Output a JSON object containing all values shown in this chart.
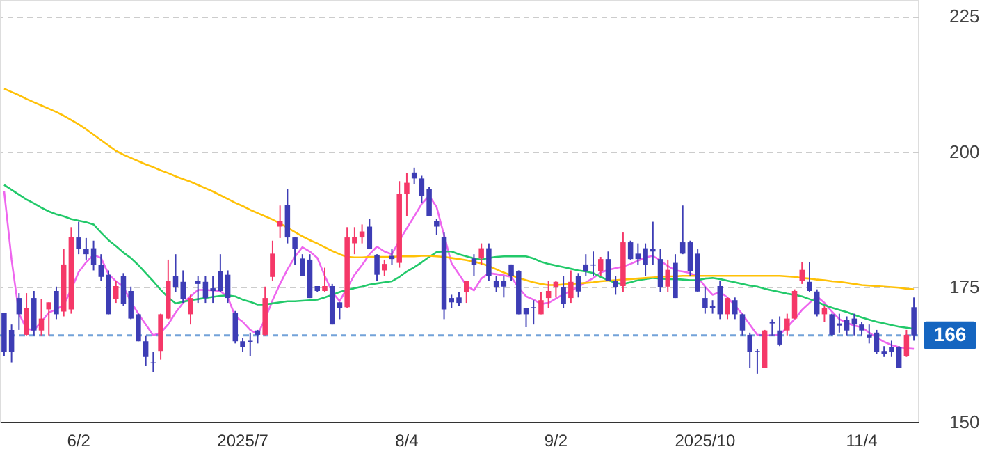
{
  "chart_data": {
    "type": "candlestick",
    "categories": [
      null,
      null,
      null,
      null,
      null,
      null,
      null,
      null,
      null,
      null,
      "6/2",
      null,
      null,
      null,
      null,
      null,
      null,
      null,
      null,
      null,
      null,
      null,
      null,
      null,
      null,
      null,
      null,
      null,
      null,
      null,
      null,
      null,
      "2025/7",
      null,
      null,
      null,
      null,
      null,
      null,
      null,
      null,
      null,
      null,
      null,
      null,
      null,
      null,
      null,
      null,
      null,
      null,
      null,
      null,
      null,
      "8/4",
      null,
      null,
      null,
      null,
      null,
      null,
      null,
      null,
      null,
      null,
      null,
      null,
      null,
      null,
      null,
      null,
      null,
      null,
      null,
      "9/2",
      null,
      null,
      null,
      null,
      null,
      null,
      null,
      null,
      null,
      null,
      null,
      null,
      null,
      null,
      null,
      null,
      null,
      null,
      null,
      "2025/10",
      null,
      null,
      null,
      null,
      null,
      null,
      null,
      null,
      null,
      null,
      null,
      null,
      null,
      null,
      null,
      null,
      null,
      null,
      null,
      null,
      "11/4",
      null,
      null,
      null,
      null,
      null,
      null,
      null
    ],
    "ohlc": [
      [
        170.1,
        170.1,
        162.2,
        162.9
      ],
      [
        167,
        168,
        161,
        163
      ],
      [
        172.9,
        173.8,
        167,
        169.9
      ],
      [
        166.1,
        173.8,
        166,
        171
      ],
      [
        172.9,
        174.2,
        166,
        166.9
      ],
      [
        166.9,
        172.7,
        166,
        169.1
      ],
      [
        170.8,
        172.1,
        166,
        172.1
      ],
      [
        174.2,
        175,
        169,
        169.9
      ],
      [
        170.4,
        182,
        169.5,
        179.1
      ],
      [
        170.8,
        186,
        170,
        184.1
      ],
      [
        184.1,
        187,
        181,
        182
      ],
      [
        182,
        184,
        180,
        181
      ],
      [
        182.1,
        183.5,
        178,
        179
      ],
      [
        179,
        181,
        176,
        176.8
      ],
      [
        177.2,
        178,
        169.9,
        169.9
      ],
      [
        172.7,
        176,
        172,
        175.1
      ],
      [
        177,
        177.5,
        171.5,
        171.8
      ],
      [
        174.2,
        175,
        169,
        169.1
      ],
      [
        169.9,
        170,
        164.9,
        164.9
      ],
      [
        164.9,
        166,
        160.3,
        162
      ],
      [
        161,
        163,
        159.2,
        160.9
      ],
      [
        163.1,
        170,
        161.5,
        169.9
      ],
      [
        169.1,
        180,
        169,
        176.1
      ],
      [
        177,
        181,
        174,
        174.9
      ],
      [
        175.9,
        178,
        172,
        172.7
      ],
      [
        169.9,
        173.5,
        168,
        172.9
      ],
      [
        176.1,
        177,
        172,
        175.5
      ],
      [
        175.9,
        177,
        172,
        172.9
      ],
      [
        174.7,
        177,
        172,
        174.2
      ],
      [
        177.8,
        181,
        174,
        174.2
      ],
      [
        177.2,
        178,
        172,
        172.9
      ],
      [
        170.1,
        170.5,
        164.5,
        164.9
      ],
      [
        164.9,
        165.5,
        163,
        163.9
      ],
      [
        165,
        166.5,
        162.2,
        164.7
      ],
      [
        166.9,
        167,
        164.5,
        166.1
      ],
      [
        166.1,
        175,
        166,
        172.9
      ],
      [
        176.8,
        183.5,
        176,
        181.1
      ],
      [
        186.1,
        190,
        184,
        187.1
      ],
      [
        190.1,
        193,
        183,
        184.1
      ],
      [
        184.1,
        184.1,
        179,
        182
      ],
      [
        180.2,
        181,
        177,
        177
      ],
      [
        180,
        181,
        172.9,
        172.9
      ],
      [
        175.1,
        175.1,
        174,
        174.2
      ],
      [
        174.2,
        178.5,
        174,
        175.1
      ],
      [
        175.1,
        175.5,
        168,
        168
      ],
      [
        172.1,
        172.1,
        169,
        171
      ],
      [
        171.2,
        186,
        171,
        184.1
      ],
      [
        183,
        186,
        181,
        184.1
      ],
      [
        184.1,
        186.5,
        183,
        185.2
      ],
      [
        186.1,
        187.5,
        182,
        182
      ],
      [
        180.9,
        181,
        176,
        177.2
      ],
      [
        178,
        180,
        177,
        179.2
      ],
      [
        180.7,
        182,
        179,
        180.1
      ],
      [
        179.4,
        194.5,
        178.5,
        192.1
      ],
      [
        192.1,
        196,
        188,
        194.2
      ],
      [
        196.1,
        197,
        194,
        195
      ],
      [
        195,
        195.5,
        190.5,
        191.8
      ],
      [
        193.1,
        193.5,
        188,
        188
      ],
      [
        187.1,
        187.5,
        184.5,
        186.1
      ],
      [
        184.1,
        185,
        169,
        170.8
      ],
      [
        172.9,
        173.5,
        171,
        172.1
      ],
      [
        173,
        174,
        171.5,
        172
      ],
      [
        174,
        176.1,
        172,
        176.1
      ],
      [
        180.2,
        181,
        177,
        179
      ],
      [
        180.2,
        183,
        179,
        182.1
      ],
      [
        182.1,
        183,
        176,
        177
      ],
      [
        176.1,
        177,
        174,
        174.9
      ],
      [
        176.1,
        177,
        173,
        175
      ],
      [
        179.1,
        179.1,
        176,
        177
      ],
      [
        177.8,
        178,
        169.9,
        169.9
      ],
      [
        171,
        171,
        167.5,
        169.9
      ],
      [
        171.2,
        172.5,
        168,
        171
      ],
      [
        169.9,
        174,
        169.9,
        172.5
      ],
      [
        172.9,
        176,
        171,
        174.2
      ],
      [
        174.9,
        176,
        173,
        175.9
      ],
      [
        174.9,
        177,
        171,
        171.8
      ],
      [
        172.9,
        178,
        172,
        175.9
      ],
      [
        177,
        177.5,
        173,
        174.1
      ],
      [
        179.1,
        181,
        177,
        177.8
      ],
      [
        179.1,
        181.5,
        177,
        178.9
      ],
      [
        177.8,
        180.5,
        177,
        180.1
      ],
      [
        180.1,
        181.5,
        176,
        176.1
      ],
      [
        176.1,
        177,
        173.5,
        174.9
      ],
      [
        175.1,
        185,
        174,
        183.2
      ],
      [
        183.2,
        183.5,
        180,
        180.1
      ],
      [
        181.1,
        183,
        179,
        180.1
      ],
      [
        182.1,
        183,
        177,
        179
      ],
      [
        182,
        187,
        179,
        181.5
      ],
      [
        180.1,
        182,
        174,
        174.9
      ],
      [
        175,
        180,
        174,
        178.1
      ],
      [
        179.4,
        181,
        172.9,
        172.9
      ],
      [
        183.2,
        190,
        181,
        181.1
      ],
      [
        183.2,
        183.5,
        177,
        177.8
      ],
      [
        181.1,
        182,
        174,
        174.1
      ],
      [
        172.9,
        175,
        170,
        171
      ],
      [
        171.5,
        172.5,
        170,
        171
      ],
      [
        175.1,
        176,
        169,
        169.9
      ],
      [
        169.9,
        173,
        169,
        172.9
      ],
      [
        172.5,
        173,
        169,
        169.9
      ],
      [
        169.9,
        170,
        166,
        166.9
      ],
      [
        166.1,
        166.5,
        160,
        162.9
      ],
      [
        163.1,
        163.5,
        158.9,
        162.9
      ],
      [
        160,
        167,
        160,
        166.9
      ],
      [
        168.4,
        169,
        166,
        168.2
      ],
      [
        166.9,
        169.5,
        164,
        164.3
      ],
      [
        166.9,
        170,
        166,
        169.1
      ],
      [
        169.1,
        174.5,
        169,
        174.2
      ],
      [
        176.1,
        179.5,
        175.5,
        178.1
      ],
      [
        175.9,
        179.5,
        174,
        174.2
      ],
      [
        174.1,
        174.5,
        169.5,
        169.9
      ],
      [
        169.9,
        171.5,
        168.5,
        171
      ],
      [
        169.9,
        170,
        166,
        166.1
      ],
      [
        168.2,
        170,
        166.5,
        167.8
      ],
      [
        168.9,
        169.5,
        166,
        166.9
      ],
      [
        169.1,
        170,
        166,
        168
      ],
      [
        168,
        168.5,
        166,
        166.9
      ],
      [
        166.1,
        168,
        164.5,
        165.6
      ],
      [
        166.5,
        167,
        162.5,
        162.9
      ],
      [
        163.1,
        164,
        162,
        162.6
      ],
      [
        163.9,
        165,
        162,
        162.9
      ],
      [
        163.9,
        164,
        160,
        160
      ],
      [
        162.2,
        167,
        162,
        166.1
      ],
      [
        171.2,
        173,
        165,
        166
      ]
    ],
    "colors": [
      "#3d3db5",
      "#3d3db5",
      "#3d3db5",
      "#f53868",
      "#3d3db5",
      "#f53868",
      "#f53868",
      "#3d3db5",
      "#f53868",
      "#f53868",
      "#3d3db5",
      "#3d3db5",
      "#3d3db5",
      "#3d3db5",
      "#3d3db5",
      "#f53868",
      "#3d3db5",
      "#3d3db5",
      "#3d3db5",
      "#3d3db5",
      "#3d3db5",
      "#f53868",
      "#f53868",
      "#3d3db5",
      "#3d3db5",
      "#f53868",
      "#3d3db5",
      "#3d3db5",
      "#3d3db5",
      "#3d3db5",
      "#3d3db5",
      "#3d3db5",
      "#3d3db5",
      "#3d3db5",
      "#3d3db5",
      "#f53868",
      "#f53868",
      "#f53868",
      "#3d3db5",
      "#3d3db5",
      "#3d3db5",
      "#3d3db5",
      "#3d3db5",
      "#f53868",
      "#3d3db5",
      "#3d3db5",
      "#f53868",
      "#f53868",
      "#f53868",
      "#3d3db5",
      "#3d3db5",
      "#f53868",
      "#3d3db5",
      "#f53868",
      "#f53868",
      "#3d3db5",
      "#3d3db5",
      "#3d3db5",
      "#3d3db5",
      "#3d3db5",
      "#3d3db5",
      "#3d3db5",
      "#f53868",
      "#3d3db5",
      "#f53868",
      "#3d3db5",
      "#3d3db5",
      "#3d3db5",
      "#3d3db5",
      "#3d3db5",
      "#3d3db5",
      "#3d3db5",
      "#f53868",
      "#f53868",
      "#f53868",
      "#3d3db5",
      "#f53868",
      "#3d3db5",
      "#3d3db5",
      "#3d3db5",
      "#f53868",
      "#3d3db5",
      "#3d3db5",
      "#f53868",
      "#3d3db5",
      "#3d3db5",
      "#3d3db5",
      "#3d3db5",
      "#3d3db5",
      "#f53868",
      "#3d3db5",
      "#3d3db5",
      "#3d3db5",
      "#3d3db5",
      "#3d3db5",
      "#3d3db5",
      "#3d3db5",
      "#f53868",
      "#3d3db5",
      "#3d3db5",
      "#3d3db5",
      "#3d3db5",
      "#f53868",
      "#3d3db5",
      "#3d3db5",
      "#f53868",
      "#f53868",
      "#f53868",
      "#3d3db5",
      "#3d3db5",
      "#f53868",
      "#3d3db5",
      "#3d3db5",
      "#3d3db5",
      "#3d3db5",
      "#3d3db5",
      "#3d3db5",
      "#3d3db5",
      "#3d3db5",
      "#3d3db5",
      "#3d3db5",
      "#f53868",
      "#3d3db5"
    ],
    "series": [
      {
        "type": "line",
        "color": "#ee66ee",
        "values": [
          192.7,
          180,
          170,
          167.2,
          167,
          168.5,
          170.2,
          170.8,
          171.6,
          174.5,
          177.7,
          179.5,
          180.9,
          180.3,
          177.3,
          176,
          175,
          172.2,
          170,
          168,
          166,
          166.5,
          168,
          170.2,
          172,
          173.2,
          174.4,
          174.4,
          174.3,
          174.2,
          173,
          169.5,
          168.5,
          167,
          166.2,
          169,
          172.5,
          175.5,
          178.2,
          180.5,
          182.3,
          181.5,
          180.3,
          177,
          174,
          172.3,
          174.8,
          177.2,
          179,
          181,
          182.4,
          181.5,
          181,
          183.5,
          185.8,
          188,
          190.3,
          191.8,
          189.7,
          184.5,
          179.3,
          177.3,
          175.2,
          174.3,
          176.5,
          177.5,
          177.3,
          177.1,
          176.8,
          174.8,
          173.2,
          172.6,
          171.8,
          172,
          172.8,
          173.6,
          174.2,
          175,
          175.8,
          176.6,
          177.6,
          178.1,
          178.4,
          178.7,
          179.2,
          179.8,
          180.4,
          180.7,
          179.8,
          178.8,
          178,
          177.8,
          177.5,
          176.8,
          175,
          173.5,
          174,
          173,
          171.5,
          169.9,
          168,
          166.1,
          166,
          166,
          166.1,
          167.5,
          169,
          170.7,
          172,
          173.2,
          172,
          170.4,
          169,
          168.3,
          167.8,
          167.5,
          166.5,
          165.6,
          164.8,
          164.2,
          163.8,
          163.6,
          163.5
        ]
      },
      {
        "type": "line",
        "color": "#22c96a",
        "values": [
          193.8,
          192.9,
          192,
          191.1,
          190.4,
          189.6,
          188.9,
          188.4,
          188,
          187.5,
          187.2,
          186.9,
          186.5,
          185,
          183.6,
          182.5,
          181.3,
          180.3,
          179,
          177.5,
          176,
          174.4,
          173,
          171.9,
          172.2,
          172.5,
          172.7,
          172.9,
          173.1,
          173.3,
          173.4,
          173.2,
          172.6,
          172.2,
          171.7,
          171.7,
          171.9,
          172.1,
          172.3,
          172.3,
          172.4,
          172.5,
          172.6,
          173,
          173.5,
          174,
          174.4,
          174.7,
          175,
          175.4,
          175.6,
          175.8,
          176,
          176.8,
          177.8,
          178.6,
          179.5,
          180.5,
          181.4,
          181.5,
          181.5,
          181,
          180.6,
          180.2,
          180,
          180.3,
          180.5,
          180.6,
          180.6,
          180.6,
          180.6,
          180.2,
          179.6,
          179.2,
          178.9,
          178.6,
          178.3,
          178,
          177.8,
          177.5,
          176.8,
          176.2,
          175.7,
          175.5,
          175.8,
          176.2,
          176.4,
          176.6,
          176.5,
          176.4,
          176.4,
          176.3,
          176.2,
          176.2,
          176.5,
          176.6,
          176.4,
          176.1,
          175.8,
          175.5,
          175.2,
          175,
          174.6,
          174.3,
          174,
          173.7,
          173.5,
          173.2,
          172.7,
          172.2,
          171.6,
          171.1,
          170.7,
          170.3,
          169.8,
          169.3,
          168.9,
          168.5,
          168.2,
          167.9,
          167.6,
          167.4,
          167.2
        ]
      },
      {
        "type": "line",
        "color": "#ffc107",
        "values": [
          211.6,
          211,
          210.4,
          209.7,
          209.1,
          208.5,
          207.9,
          207.3,
          206.6,
          205.8,
          205,
          204.1,
          203.1,
          202.1,
          201.1,
          200.1,
          199.4,
          198.8,
          198.2,
          197.6,
          197.1,
          196.5,
          196,
          195.4,
          194.9,
          194.4,
          193.8,
          193.2,
          192.6,
          191.9,
          191.2,
          190.5,
          189.9,
          189.2,
          188.6,
          188,
          187.4,
          186.7,
          185.9,
          185.1,
          184.3,
          183.6,
          183,
          182.3,
          181.6,
          181,
          180.5,
          180.4,
          180.4,
          180.5,
          180.5,
          180.5,
          180.5,
          180.6,
          180.6,
          180.6,
          180.7,
          180.7,
          180.6,
          180.5,
          180.3,
          180.1,
          179.9,
          179.6,
          179.3,
          178.8,
          178.2,
          177.6,
          177.1,
          176.6,
          176.2,
          175.8,
          175.5,
          175.3,
          175.3,
          175.4,
          175.5,
          175.6,
          175.7,
          175.8,
          176,
          176.1,
          176.2,
          176.3,
          176.4,
          176.5,
          176.6,
          176.7,
          176.8,
          176.9,
          176.9,
          177,
          177,
          177,
          177,
          177,
          177,
          177,
          177,
          177,
          177,
          177,
          177,
          177,
          177,
          176.9,
          176.8,
          176.6,
          176.5,
          176.3,
          176.2,
          176,
          175.9,
          175.7,
          175.5,
          175.3,
          175.2,
          175.1,
          175,
          174.9,
          174.8,
          174.6,
          174.5
        ]
      }
    ],
    "ylim": [
      150,
      228
    ],
    "yticks": [
      150,
      175,
      200,
      225
    ],
    "grid": "y",
    "ref_lines": [
      {
        "axis": "y",
        "value": 166,
        "label": "166",
        "color": "#1565c0",
        "line_style": "dashed"
      }
    ]
  }
}
